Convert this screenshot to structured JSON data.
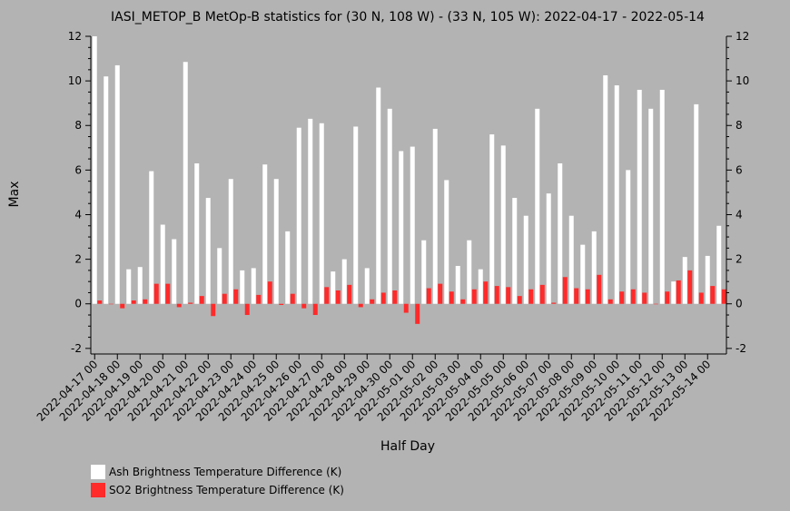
{
  "chart_data": {
    "type": "bar",
    "title": "IASI_METOP_B MetOp-B statistics for (30 N, 108 W) - (33 N, 105 W): 2022-04-17 - 2022-05-14",
    "xlabel": "Half Day",
    "ylabel": "Max",
    "ylim": [
      -2.25,
      12
    ],
    "yticks": [
      -2,
      0,
      2,
      4,
      6,
      8,
      10,
      12
    ],
    "grid": false,
    "legend_position": "bottom-left",
    "categories": [
      "2022-04-17 00",
      "2022-04-17 12",
      "2022-04-18 00",
      "2022-04-18 12",
      "2022-04-19 00",
      "2022-04-19 12",
      "2022-04-20 00",
      "2022-04-20 12",
      "2022-04-21 00",
      "2022-04-21 12",
      "2022-04-22 00",
      "2022-04-22 12",
      "2022-04-23 00",
      "2022-04-23 12",
      "2022-04-24 00",
      "2022-04-24 12",
      "2022-04-25 00",
      "2022-04-25 12",
      "2022-04-26 00",
      "2022-04-26 12",
      "2022-04-27 00",
      "2022-04-27 12",
      "2022-04-28 00",
      "2022-04-28 12",
      "2022-04-29 00",
      "2022-04-29 12",
      "2022-04-30 00",
      "2022-04-30 12",
      "2022-05-01 00",
      "2022-05-01 12",
      "2022-05-02 00",
      "2022-05-02 12",
      "2022-05-03 00",
      "2022-05-03 12",
      "2022-05-04 00",
      "2022-05-04 12",
      "2022-05-05 00",
      "2022-05-05 12",
      "2022-05-06 00",
      "2022-05-06 12",
      "2022-05-07 00",
      "2022-05-07 12",
      "2022-05-08 00",
      "2022-05-08 12",
      "2022-05-09 00",
      "2022-05-09 12",
      "2022-05-10 00",
      "2022-05-10 12",
      "2022-05-11 00",
      "2022-05-11 12",
      "2022-05-12 00",
      "2022-05-12 12",
      "2022-05-13 00",
      "2022-05-13 12",
      "2022-05-14 00",
      "2022-05-14 12"
    ],
    "tick_labels": [
      "2022-04-17 00",
      "2022-04-18 00",
      "2022-04-19 00",
      "2022-04-20 00",
      "2022-04-21 00",
      "2022-04-22 00",
      "2022-04-23 00",
      "2022-04-24 00",
      "2022-04-25 00",
      "2022-04-26 00",
      "2022-04-27 00",
      "2022-04-28 00",
      "2022-04-29 00",
      "2022-04-30 00",
      "2022-05-01 00",
      "2022-05-02 00",
      "2022-05-03 00",
      "2022-05-04 00",
      "2022-05-05 00",
      "2022-05-06 00",
      "2022-05-07 00",
      "2022-05-08 00",
      "2022-05-09 00",
      "2022-05-10 00",
      "2022-05-11 00",
      "2022-05-12 00",
      "2022-05-13 00",
      "2022-05-14 00"
    ],
    "series": [
      {
        "name": "Ash Brightness Temperature Difference (K)",
        "color": "#ffffff",
        "values": [
          12.0,
          10.2,
          10.7,
          1.55,
          1.65,
          5.95,
          3.55,
          2.9,
          10.85,
          6.3,
          4.75,
          2.5,
          5.6,
          1.5,
          1.6,
          6.25,
          5.6,
          3.25,
          7.9,
          8.3,
          8.1,
          1.45,
          2.0,
          7.95,
          1.6,
          9.7,
          8.75,
          6.85,
          7.05,
          2.85,
          7.85,
          5.55,
          1.7,
          2.85,
          1.55,
          7.6,
          7.1,
          4.75,
          3.95,
          8.75,
          4.95,
          6.3,
          3.95,
          2.65,
          3.25,
          10.25,
          9.8,
          6.0,
          9.6,
          8.75,
          9.6,
          1.0,
          2.1,
          8.95,
          2.15,
          3.5
        ]
      },
      {
        "name": "SO2 Brightness Temperature Difference (K)",
        "color": "#ff2a2a",
        "values": [
          0.15,
          0.0,
          -0.2,
          0.15,
          0.2,
          0.9,
          0.9,
          -0.15,
          0.05,
          0.35,
          -0.55,
          0.45,
          0.65,
          -0.5,
          0.4,
          1.0,
          -0.05,
          0.45,
          -0.2,
          -0.5,
          0.75,
          0.6,
          0.85,
          -0.15,
          0.2,
          0.5,
          0.6,
          -0.4,
          -0.9,
          0.7,
          0.9,
          0.55,
          0.2,
          0.65,
          1.0,
          0.8,
          0.75,
          0.35,
          0.65,
          0.85,
          0.05,
          1.2,
          0.7,
          0.65,
          1.3,
          0.2,
          0.55,
          0.65,
          0.5,
          0.0,
          0.55,
          1.05,
          1.5,
          0.5,
          0.8,
          0.65
        ]
      }
    ]
  }
}
